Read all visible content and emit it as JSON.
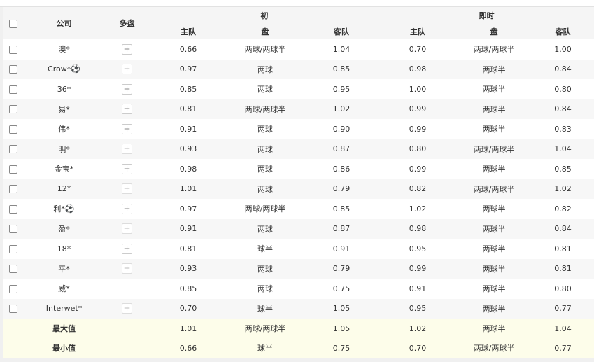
{
  "header": {
    "company": "公司",
    "multi": "多盘",
    "initial": "初",
    "live": "即时",
    "home": "主队",
    "line": "盘",
    "away": "客队"
  },
  "rows": [
    {
      "company": "澳*",
      "plus": "active",
      "i_home": "0.66",
      "i_line": "两球/两球半",
      "i_away": "1.04",
      "l_home": "0.70",
      "l_line": "两球/两球半",
      "l_away": "1.00"
    },
    {
      "company": "Crow*⚽",
      "plus": "dim",
      "i_home": "0.97",
      "i_line": "两球",
      "i_away": "0.85",
      "l_home": "0.98",
      "l_line": "两球半",
      "l_away": "0.84"
    },
    {
      "company": "36*",
      "plus": "active",
      "i_home": "0.85",
      "i_line": "两球",
      "i_away": "0.95",
      "l_home": "1.00",
      "l_line": "两球半",
      "l_away": "0.80"
    },
    {
      "company": "易*",
      "plus": "active",
      "i_home": "0.81",
      "i_line": "两球/两球半",
      "i_away": "1.02",
      "l_home": "0.99",
      "l_line": "两球半",
      "l_away": "0.84"
    },
    {
      "company": "伟*",
      "plus": "active",
      "i_home": "0.91",
      "i_line": "两球",
      "i_away": "0.90",
      "l_home": "0.99",
      "l_line": "两球半",
      "l_away": "0.83"
    },
    {
      "company": "明*",
      "plus": "dim",
      "i_home": "0.93",
      "i_line": "两球",
      "i_away": "0.87",
      "l_home": "0.80",
      "l_line": "两球/两球半",
      "l_away": "1.04"
    },
    {
      "company": "金宝*",
      "plus": "active",
      "i_home": "0.98",
      "i_line": "两球",
      "i_away": "0.86",
      "l_home": "0.99",
      "l_line": "两球半",
      "l_away": "0.85"
    },
    {
      "company": "12*",
      "plus": "dim",
      "i_home": "1.01",
      "i_line": "两球",
      "i_away": "0.79",
      "l_home": "0.82",
      "l_line": "两球/两球半",
      "l_away": "1.02"
    },
    {
      "company": "利*⚽",
      "plus": "active",
      "i_home": "0.97",
      "i_line": "两球/两球半",
      "i_away": "0.85",
      "l_home": "1.02",
      "l_line": "两球半",
      "l_away": "0.82"
    },
    {
      "company": "盈*",
      "plus": "dim",
      "i_home": "0.91",
      "i_line": "两球",
      "i_away": "0.87",
      "l_home": "0.98",
      "l_line": "两球半",
      "l_away": "0.84"
    },
    {
      "company": "18*",
      "plus": "active",
      "i_home": "0.81",
      "i_line": "球半",
      "i_away": "0.91",
      "l_home": "0.95",
      "l_line": "两球半",
      "l_away": "0.81"
    },
    {
      "company": "平*",
      "plus": "dim",
      "i_home": "0.93",
      "i_line": "两球",
      "i_away": "0.79",
      "l_home": "0.99",
      "l_line": "两球半",
      "l_away": "0.81"
    },
    {
      "company": "威*",
      "plus": "none",
      "i_home": "0.85",
      "i_line": "两球",
      "i_away": "0.75",
      "l_home": "0.91",
      "l_line": "两球半",
      "l_away": "0.80"
    },
    {
      "company": "Interwet*",
      "plus": "dim",
      "i_home": "0.70",
      "i_line": "球半",
      "i_away": "1.05",
      "l_home": "0.95",
      "l_line": "两球半",
      "l_away": "0.77"
    }
  ],
  "summary": [
    {
      "label": "最大值",
      "i_home": "1.01",
      "i_line": "两球/两球半",
      "i_away": "1.05",
      "l_home": "1.02",
      "l_line": "两球半",
      "l_away": "1.04"
    },
    {
      "label": "最小值",
      "i_home": "0.66",
      "i_line": "球半",
      "i_away": "0.75",
      "l_home": "0.70",
      "l_line": "两球/两球半",
      "l_away": "0.77"
    }
  ]
}
